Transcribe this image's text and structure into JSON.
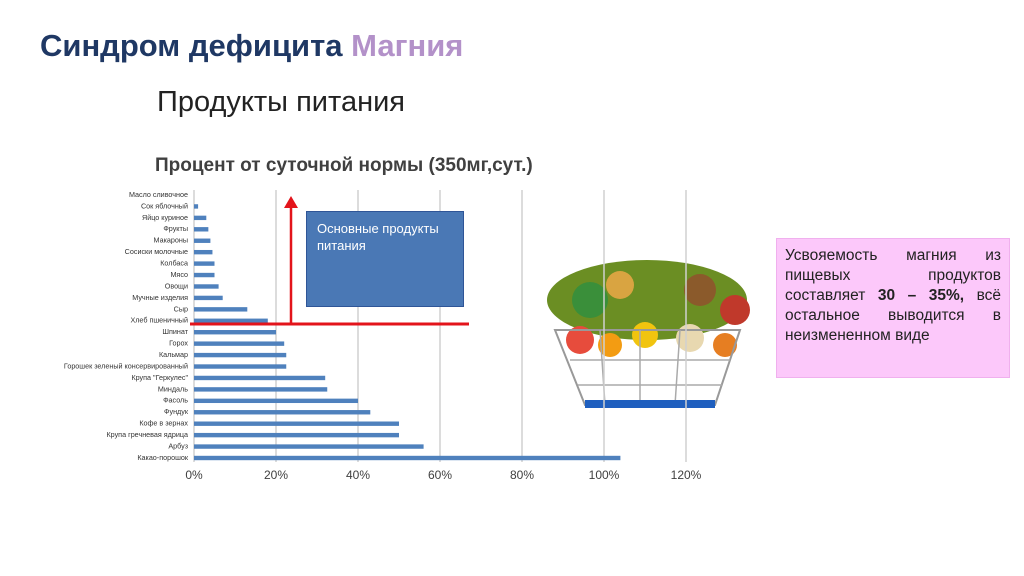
{
  "slide": {
    "title_main": "Синдром дефицита",
    "title_accent": "Магния",
    "subtitle": "Продукты питания",
    "note_before": "Усвояемость магния из пищевых продуктов составляет",
    "note_bold": "30 – 35%,",
    "note_after": "всё остальное выводится в неизмененном виде"
  },
  "chart_data": {
    "type": "hbar",
    "title": "Процент от суточной нормы (350мг,сут.)",
    "annotation": "Основные продукты питания",
    "categories": [
      "Масло сливочное",
      "Сок яблочный",
      "Яйцо куриное",
      "Фрукты",
      "Макароны",
      "Сосиски молочные",
      "Колбаса",
      "Мясо",
      "Овощи",
      "Мучные изделия",
      "Сыр",
      "Хлеб пшеничный",
      "Шпинат",
      "Горох",
      "Кальмар",
      "Горошек зеленый консервированный",
      "Крупа \"Геркулес\"",
      "Миндаль",
      "Фасоль",
      "Фундук",
      "Кофе в зернах",
      "Крупа гречневая ядрица",
      "Арбуз",
      "Какао-порошок"
    ],
    "values": [
      0,
      1,
      3,
      3.5,
      4,
      4.5,
      5,
      5,
      6,
      7,
      13,
      18,
      20,
      22,
      22.5,
      22.5,
      32,
      32.5,
      40,
      43,
      50,
      50,
      56,
      104
    ],
    "color": "#4f81bd",
    "xlim": [
      0,
      120
    ],
    "xticks": [
      {
        "value": 0,
        "label": "0%"
      },
      {
        "value": 20,
        "label": "20%"
      },
      {
        "value": 40,
        "label": "40%"
      },
      {
        "value": 60,
        "label": "60%"
      },
      {
        "value": 80,
        "label": "80%"
      },
      {
        "value": 100,
        "label": "100%"
      },
      {
        "value": 120,
        "label": "120%"
      }
    ],
    "grid": true
  }
}
